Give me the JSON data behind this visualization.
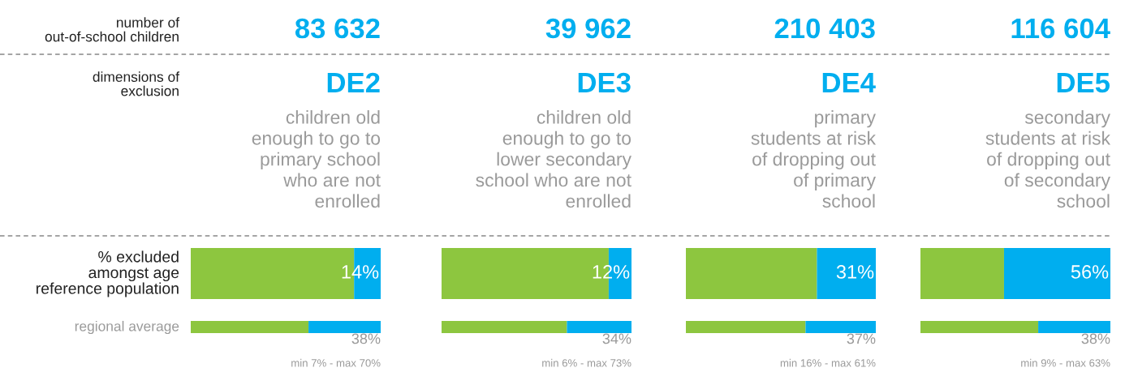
{
  "chart_data": [
    {
      "type": "other",
      "annotations": [
        "number of\nout-of-school children",
        "dimensions of\nexclusion",
        "% excluded\namongst age\nreference population",
        "regional average"
      ]
    },
    {
      "type": "bar",
      "orientation": "horizontal",
      "stacked": true,
      "title": "83 632",
      "subtitle": "DE2",
      "annotations": [
        "children old\nenough to go to\nprimary school\nwho are not\nenrolled"
      ],
      "categories": [
        null
      ],
      "xlim": [
        0,
        100
      ],
      "tick_labels": false,
      "series": [
        {
          "color": "#8dc63f",
          "values": [
            86
          ]
        },
        {
          "color": "#00aeef",
          "values": [
            14
          ],
          "value_labels": [
            "14%"
          ]
        }
      ]
    },
    {
      "type": "bar",
      "orientation": "horizontal",
      "stacked": true,
      "annotations": [
        "min 7% - max 70%"
      ],
      "categories": [
        null
      ],
      "xlim": [
        0,
        100
      ],
      "tick_labels": false,
      "series": [
        {
          "color": "#8dc63f",
          "values": [
            62
          ]
        },
        {
          "color": "#00aeef",
          "values": [
            38
          ],
          "value_labels": [
            "38%"
          ]
        }
      ]
    },
    {
      "type": "bar",
      "orientation": "horizontal",
      "stacked": true,
      "title": "39 962",
      "subtitle": "DE3",
      "annotations": [
        "children old\nenough to go to\nlower secondary\nschool who are not\nenrolled"
      ],
      "categories": [
        null
      ],
      "xlim": [
        0,
        100
      ],
      "tick_labels": false,
      "series": [
        {
          "color": "#8dc63f",
          "values": [
            88
          ]
        },
        {
          "color": "#00aeef",
          "values": [
            12
          ],
          "value_labels": [
            "12%"
          ]
        }
      ]
    },
    {
      "type": "bar",
      "orientation": "horizontal",
      "stacked": true,
      "annotations": [
        "min 6% - max 73%"
      ],
      "categories": [
        null
      ],
      "xlim": [
        0,
        100
      ],
      "tick_labels": false,
      "series": [
        {
          "color": "#8dc63f",
          "values": [
            66
          ]
        },
        {
          "color": "#00aeef",
          "values": [
            34
          ],
          "value_labels": [
            "34%"
          ]
        }
      ]
    },
    {
      "type": "bar",
      "orientation": "horizontal",
      "stacked": true,
      "title": "210 403",
      "subtitle": "DE4",
      "annotations": [
        "primary\nstudents at risk\nof dropping out\nof primary\nschool"
      ],
      "categories": [
        null
      ],
      "xlim": [
        0,
        100
      ],
      "tick_labels": false,
      "series": [
        {
          "color": "#8dc63f",
          "values": [
            69
          ]
        },
        {
          "color": "#00aeef",
          "values": [
            31
          ],
          "value_labels": [
            "31%"
          ]
        }
      ]
    },
    {
      "type": "bar",
      "orientation": "horizontal",
      "stacked": true,
      "annotations": [
        "min 16% - max 61%"
      ],
      "categories": [
        null
      ],
      "xlim": [
        0,
        100
      ],
      "tick_labels": false,
      "series": [
        {
          "color": "#8dc63f",
          "values": [
            63
          ]
        },
        {
          "color": "#00aeef",
          "values": [
            37
          ],
          "value_labels": [
            "37%"
          ]
        }
      ]
    },
    {
      "type": "bar",
      "orientation": "horizontal",
      "stacked": true,
      "title": "116 604",
      "subtitle": "DE5",
      "annotations": [
        "secondary\nstudents at risk\nof dropping out\nof secondary\nschool"
      ],
      "categories": [
        null
      ],
      "xlim": [
        0,
        100
      ],
      "tick_labels": false,
      "series": [
        {
          "color": "#8dc63f",
          "values": [
            44
          ]
        },
        {
          "color": "#00aeef",
          "values": [
            56
          ],
          "value_labels": [
            "56%"
          ]
        }
      ]
    },
    {
      "type": "bar",
      "orientation": "horizontal",
      "stacked": true,
      "annotations": [
        "min 9% - max 63%"
      ],
      "categories": [
        null
      ],
      "xlim": [
        0,
        100
      ],
      "tick_labels": false,
      "series": [
        {
          "color": "#8dc63f",
          "values": [
            62
          ]
        },
        {
          "color": "#00aeef",
          "values": [
            38
          ],
          "value_labels": [
            "38%"
          ]
        }
      ]
    }
  ]
}
